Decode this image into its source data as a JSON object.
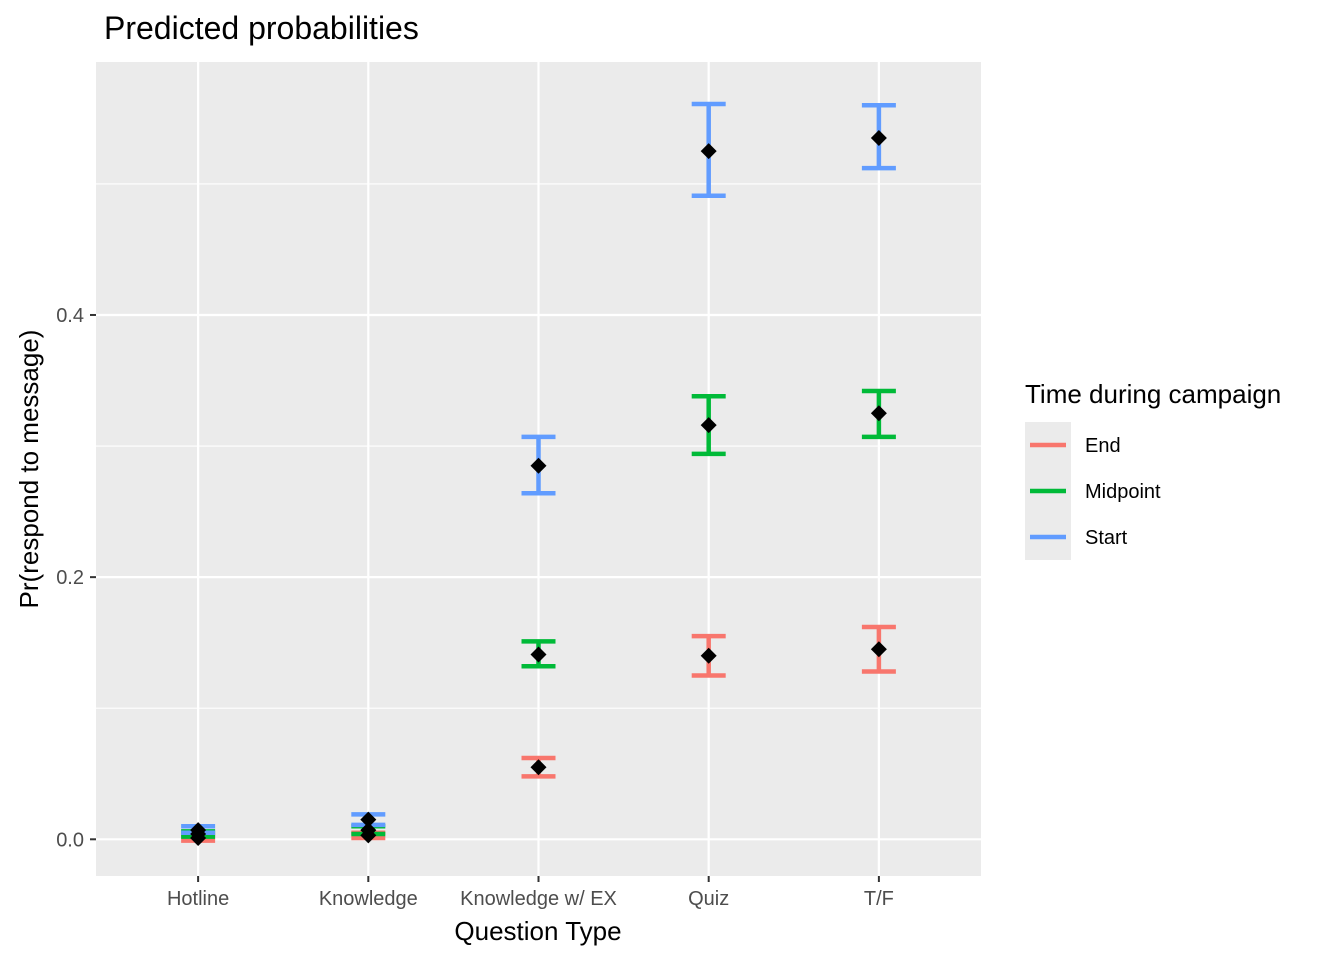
{
  "chart_data": {
    "type": "errorbar",
    "title": "Predicted probabilities",
    "xlabel": "Question Type",
    "ylabel": "Pr(respond to message)",
    "categories": [
      "Hotline",
      "Knowledge",
      "Knowledge w/ EX",
      "Quiz",
      "T/F"
    ],
    "ylim": [
      -0.028,
      0.593
    ],
    "yticks": [
      0.0,
      0.2,
      0.4
    ],
    "ytick_labels": [
      "0.0",
      "0.2",
      "0.4"
    ],
    "grid": true,
    "legend": {
      "title": "Time during campaign",
      "position": "right"
    },
    "series": [
      {
        "name": "End",
        "color": "#F8766D",
        "values": [
          0.001,
          0.003,
          0.055,
          0.14,
          0.145
        ],
        "lower": [
          -0.001,
          0.001,
          0.048,
          0.125,
          0.128
        ],
        "upper": [
          0.003,
          0.005,
          0.062,
          0.155,
          0.162
        ]
      },
      {
        "name": "Midpoint",
        "color": "#00BA38",
        "values": [
          0.004,
          0.007,
          0.141,
          0.316,
          0.325
        ],
        "lower": [
          0.002,
          0.004,
          0.132,
          0.294,
          0.307
        ],
        "upper": [
          0.006,
          0.01,
          0.151,
          0.338,
          0.342
        ]
      },
      {
        "name": "Start",
        "color": "#619CFF",
        "values": [
          0.007,
          0.015,
          0.285,
          0.525,
          0.535
        ],
        "lower": [
          0.005,
          0.011,
          0.264,
          0.491,
          0.512
        ],
        "upper": [
          0.01,
          0.019,
          0.307,
          0.561,
          0.56
        ]
      }
    ],
    "point_color": "#000000"
  }
}
